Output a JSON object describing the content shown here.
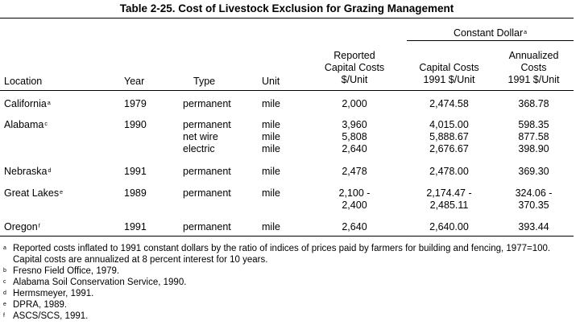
{
  "title": "Table 2-25.  Cost of Livestock Exclusion for Grazing Management",
  "headers": {
    "constant_dollar": "Constant Dollar",
    "constant_dollar_mark": "a",
    "location": "Location",
    "year": "Year",
    "type": "Type",
    "unit": "Unit",
    "reported": [
      "Reported",
      "Capital Costs",
      "$/Unit"
    ],
    "capital": [
      "Capital Costs",
      "1991 $/Unit"
    ],
    "annualized": [
      "Annualized",
      "Costs",
      "1991 $/Unit"
    ]
  },
  "rows": [
    {
      "location": "California",
      "mark": "a",
      "year": "1979",
      "type": "permanent",
      "unit": "mile",
      "reported": "2,000",
      "capital": "2,474.58",
      "annualized": "368.78"
    },
    {
      "location": "Alabama",
      "mark": "c",
      "year": "1990",
      "type": "permanent",
      "unit": "mile",
      "reported": "3,960",
      "capital": "4,015.00",
      "annualized": "598.35"
    },
    {
      "location": "",
      "mark": "",
      "year": "",
      "type": "net wire",
      "unit": "mile",
      "reported": "5,808",
      "capital": "5,888.67",
      "annualized": "877.58"
    },
    {
      "location": "",
      "mark": "",
      "year": "",
      "type": "electric",
      "unit": "mile",
      "reported": "2,640",
      "capital": "2,676.67",
      "annualized": "398.90"
    },
    {
      "location": "Nebraska",
      "mark": "d",
      "year": "1991",
      "type": "permanent",
      "unit": "mile",
      "reported": "2,478",
      "capital": "2,478.00",
      "annualized": "369.30"
    },
    {
      "location": "Great Lakes",
      "mark": "e",
      "year": "1989",
      "type": "permanent",
      "unit": "mile",
      "reported": "2,100 -",
      "capital": "2,174.47 -",
      "annualized": "324.06 -"
    },
    {
      "location": "",
      "mark": "",
      "year": "",
      "type": "",
      "unit": "",
      "reported": "2,400",
      "capital": "2,485.11",
      "annualized": "370.35"
    },
    {
      "location": "Oregon",
      "mark": "f",
      "year": "1991",
      "type": "permanent",
      "unit": "mile",
      "reported": "2,640",
      "capital": "2,640.00",
      "annualized": "393.44"
    }
  ],
  "footnotes": [
    {
      "mark": "a",
      "text": "Reported costs inflated to 1991 constant dollars by the ratio of indices of prices paid by farmers for building and fencing, 1977=100."
    },
    {
      "mark": "",
      "text": "Capital costs are annualized at 8 percent interest for 10 years."
    },
    {
      "mark": "b",
      "text": "Fresno Field Office, 1979."
    },
    {
      "mark": "c",
      "text": "Alabama Soil Conservation Service, 1990."
    },
    {
      "mark": "d",
      "text": "Hermsmeyer, 1991."
    },
    {
      "mark": "e",
      "text": "DPRA, 1989."
    },
    {
      "mark": "f",
      "text": "ASCS/SCS, 1991."
    }
  ]
}
